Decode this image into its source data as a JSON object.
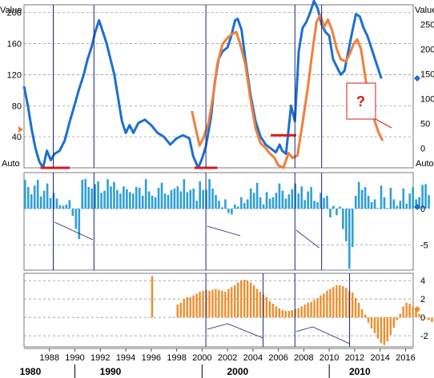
{
  "axis_labels": {
    "left_value": "Value",
    "right_value": "Value",
    "auto_left": "Auto",
    "auto_right": "Auto",
    "annotation": "?"
  },
  "colors": {
    "blue": "#1c6fd1",
    "orange": "#f07f3c",
    "bar_blue": "#2f9fd6",
    "bar_orange": "#f08c2a",
    "red": "#d81b1b",
    "vline": "#1a237e",
    "grid": "#9a9a9a"
  },
  "chart_data": [
    {
      "type": "line",
      "panel": "top",
      "left_ticks": [
        "40",
        "80",
        "120",
        "160",
        "200"
      ],
      "right_ticks": [
        "0",
        "50",
        "100",
        "150",
        "200",
        "250"
      ],
      "left_ylim": [
        0,
        210
      ],
      "right_ylim": [
        -40,
        290
      ],
      "series": [
        {
          "axis": "left",
          "color": "blue",
          "points": [
            [
              1986.0,
              105
            ],
            [
              1986.3,
              80
            ],
            [
              1986.6,
              50
            ],
            [
              1986.9,
              25
            ],
            [
              1987.2,
              8
            ],
            [
              1987.5,
              0
            ],
            [
              1987.8,
              22
            ],
            [
              1988.1,
              10
            ],
            [
              1988.4,
              18
            ],
            [
              1988.8,
              22
            ],
            [
              1989.2,
              35
            ],
            [
              1989.6,
              60
            ],
            [
              1990.0,
              82
            ],
            [
              1990.3,
              100
            ],
            [
              1990.7,
              120
            ],
            [
              1991.0,
              140
            ],
            [
              1991.3,
              155
            ],
            [
              1991.6,
              175
            ],
            [
              1991.9,
              190
            ],
            [
              1992.2,
              175
            ],
            [
              1992.5,
              160
            ],
            [
              1992.8,
              140
            ],
            [
              1993.1,
              120
            ],
            [
              1993.4,
              90
            ],
            [
              1993.7,
              60
            ],
            [
              1994.0,
              45
            ],
            [
              1994.3,
              55
            ],
            [
              1994.6,
              45
            ],
            [
              1995.0,
              58
            ],
            [
              1995.5,
              62
            ],
            [
              1996.0,
              55
            ],
            [
              1996.5,
              45
            ],
            [
              1997.0,
              40
            ],
            [
              1997.5,
              30
            ],
            [
              1998.0,
              38
            ],
            [
              1998.5,
              42
            ],
            [
              1999.0,
              38
            ],
            [
              1999.3,
              15
            ],
            [
              1999.7,
              0
            ],
            [
              2000.0,
              12
            ],
            [
              2000.3,
              28
            ],
            [
              2000.7,
              65
            ],
            [
              2001.0,
              110
            ],
            [
              2001.3,
              140
            ],
            [
              2001.6,
              150
            ],
            [
              2002.0,
              155
            ],
            [
              2002.3,
              170
            ],
            [
              2002.6,
              190
            ],
            [
              2002.8,
              192
            ],
            [
              2003.1,
              178
            ],
            [
              2003.4,
              140
            ],
            [
              2003.8,
              95
            ],
            [
              2004.2,
              60
            ],
            [
              2004.6,
              40
            ],
            [
              2005.0,
              30
            ],
            [
              2005.4,
              25
            ],
            [
              2005.8,
              20
            ],
            [
              2006.1,
              30
            ],
            [
              2006.3,
              22
            ],
            [
              2006.6,
              18
            ],
            [
              2007.0,
              80
            ],
            [
              2007.3,
              60
            ],
            [
              2007.6,
              150
            ],
            [
              2007.9,
              180
            ],
            [
              2008.2,
              188
            ],
            [
              2008.5,
              200
            ],
            [
              2008.8,
              215
            ],
            [
              2009.1,
              205
            ],
            [
              2009.4,
              185
            ],
            [
              2009.7,
              175
            ],
            [
              2010.0,
              170
            ],
            [
              2010.3,
              140
            ],
            [
              2010.6,
              130
            ],
            [
              2010.9,
              120
            ],
            [
              2011.2,
              125
            ],
            [
              2011.5,
              150
            ],
            [
              2011.8,
              175
            ],
            [
              2012.1,
              198
            ],
            [
              2012.4,
              195
            ],
            [
              2012.7,
              180
            ],
            [
              2013.0,
              170
            ],
            [
              2013.4,
              150
            ],
            [
              2013.8,
              130
            ],
            [
              2014.1,
              115
            ]
          ]
        },
        {
          "axis": "right",
          "color": "orange",
          "points": [
            [
              1999.2,
              75
            ],
            [
              1999.5,
              40
            ],
            [
              1999.8,
              5
            ],
            [
              2000.1,
              20
            ],
            [
              2000.5,
              50
            ],
            [
              2000.9,
              110
            ],
            [
              2001.2,
              170
            ],
            [
              2001.6,
              210
            ],
            [
              2001.9,
              220
            ],
            [
              2002.3,
              230
            ],
            [
              2002.7,
              235
            ],
            [
              2003.0,
              210
            ],
            [
              2003.4,
              170
            ],
            [
              2003.8,
              100
            ],
            [
              2004.2,
              40
            ],
            [
              2004.6,
              10
            ],
            [
              2005.0,
              0
            ],
            [
              2005.3,
              -10
            ],
            [
              2005.7,
              -20
            ],
            [
              2006.0,
              -35
            ],
            [
              2006.4,
              -40
            ],
            [
              2006.8,
              -10
            ],
            [
              2007.1,
              -20
            ],
            [
              2007.5,
              -15
            ],
            [
              2007.9,
              50
            ],
            [
              2008.3,
              120
            ],
            [
              2008.7,
              200
            ],
            [
              2009.0,
              255
            ],
            [
              2009.3,
              270
            ],
            [
              2009.6,
              245
            ],
            [
              2009.9,
              260
            ],
            [
              2010.2,
              240
            ],
            [
              2010.6,
              200
            ],
            [
              2010.9,
              180
            ],
            [
              2011.3,
              175
            ],
            [
              2011.6,
              190
            ],
            [
              2011.9,
              210
            ],
            [
              2012.2,
              220
            ],
            [
              2012.5,
              200
            ],
            [
              2012.8,
              150
            ],
            [
              2013.1,
              100
            ],
            [
              2013.5,
              60
            ],
            [
              2013.9,
              30
            ],
            [
              2014.2,
              15
            ]
          ]
        }
      ],
      "red_segments": [
        {
          "y": 0,
          "x": [
            1987.3,
            1989.6
          ]
        },
        {
          "y": 0,
          "x": [
            1999.4,
            2001.2
          ]
        },
        {
          "y": 26,
          "x": [
            2005.4,
            2007.4
          ]
        }
      ],
      "vlines": [
        1988.3,
        1991.5,
        2000.3,
        2007.3,
        2009.4
      ]
    },
    {
      "type": "bar",
      "panel": "middle",
      "right_ticks": [
        "-5",
        "0"
      ],
      "ylim": [
        -8.5,
        5
      ],
      "series": [
        {
          "color": "bar_blue",
          "x_start": 1986.0,
          "x_step": 0.25,
          "values": [
            4,
            3,
            2,
            3.2,
            4,
            1.7,
            2.5,
            3.5,
            1.5,
            2.2,
            1.4,
            0.5,
            0.4,
            0.6,
            1.2,
            -1.0,
            -2.8,
            -4.2,
            4,
            4.1,
            3,
            2.8,
            3.4,
            3.8,
            2.2,
            2.5,
            4.1,
            3.1,
            3.7,
            2.6,
            2.1,
            3.1,
            2.7,
            2.3,
            2.1,
            3,
            2.9,
            1.8,
            4.1,
            2.4,
            1.8,
            1.6,
            2.9,
            3.6,
            2.1,
            1.9,
            2.6,
            2.8,
            3.1,
            2.4,
            4.1,
            2.3,
            2.6,
            2.8,
            1.1,
            3.8,
            2.6,
            2.6,
            4.1,
            2.8,
            1.9,
            1.1,
            0.2,
            1.3,
            -0.6,
            -0.8,
            0.6,
            0.3,
            1.6,
            0.8,
            1.3,
            2.8,
            2.2,
            3.6,
            1.6,
            0.6,
            2.3,
            1.4,
            1.6,
            2.2,
            3.5,
            2.5,
            1.4,
            2.0,
            2.7,
            3.5,
            2.1,
            3.1,
            1.2,
            2.4,
            3.0,
            1.1,
            0.9,
            2.2,
            1.5,
            1.8,
            -1.2,
            0.4,
            -0.9,
            0.3,
            -2.8,
            -4.5,
            -8.3,
            -5.3,
            1.8,
            3.7,
            2.6,
            3.0,
            1.8,
            0.9,
            1.3,
            0.1,
            3.2,
            1.6,
            0.1,
            2.9,
            1.3,
            0.4,
            1.1,
            2.8,
            0.7,
            2.1,
            3.0,
            1.3,
            1.6,
            3.3,
            3.4,
            1.9
          ]
        }
      ],
      "vlines": [
        1988.3,
        1991.5,
        2000.3,
        2007.3,
        2009.4
      ]
    },
    {
      "type": "bar",
      "panel": "bottom",
      "right_ticks": [
        "-2",
        "0",
        "2",
        "4"
      ],
      "ylim": [
        -3.2,
        4.8
      ],
      "series": [
        {
          "color": "bar_orange",
          "x_start": 1996.0,
          "x_step": 0.25,
          "values": [
            4.5,
            0,
            0,
            0,
            0,
            0,
            0,
            0,
            1.4,
            1.6,
            2.0,
            2.2,
            2.2,
            2.4,
            2.6,
            2.8,
            2.9,
            3.0,
            2.9,
            3.0,
            3.1,
            3.0,
            2.9,
            2.8,
            3.1,
            3.3,
            3.5,
            3.8,
            4.0,
            4.1,
            4.0,
            3.8,
            3.5,
            3.1,
            2.8,
            2.5,
            2.2,
            1.8,
            1.5,
            1.2,
            1.0,
            0.8,
            0.7,
            0.7,
            0.8,
            0.9,
            1.0,
            1.2,
            1.4,
            1.6,
            1.7,
            1.9,
            2.1,
            2.4,
            2.6,
            2.9,
            3.1,
            3.3,
            3.5,
            3.5,
            3.4,
            3.2,
            2.9,
            2.7,
            2.1,
            1.6,
            0.9,
            0.3,
            -0.6,
            -1.2,
            -1.7,
            -2.3,
            -2.8,
            -3.0,
            -2.6,
            -1.9,
            -1.1,
            -0.3,
            0.4,
            1.2,
            1.6,
            1.5,
            1.2,
            0.8,
            0.4,
            0.1,
            -0.1,
            -0.3,
            -0.5,
            -0.6,
            -0.5,
            -0.4,
            -0.1,
            0.3,
            0.5,
            0.6
          ]
        }
      ],
      "vlines": [
        2000.3,
        2004.8,
        2007.3,
        2011.6
      ]
    }
  ],
  "x_axis": {
    "ticks": [
      "1988",
      "1990",
      "1992",
      "1994",
      "1996",
      "1998",
      "2000",
      "2002",
      "2004",
      "2006",
      "2008",
      "2010",
      "2012",
      "2014",
      "2016"
    ],
    "decades": [
      "1980",
      "1990",
      "2000",
      "2010"
    ]
  }
}
